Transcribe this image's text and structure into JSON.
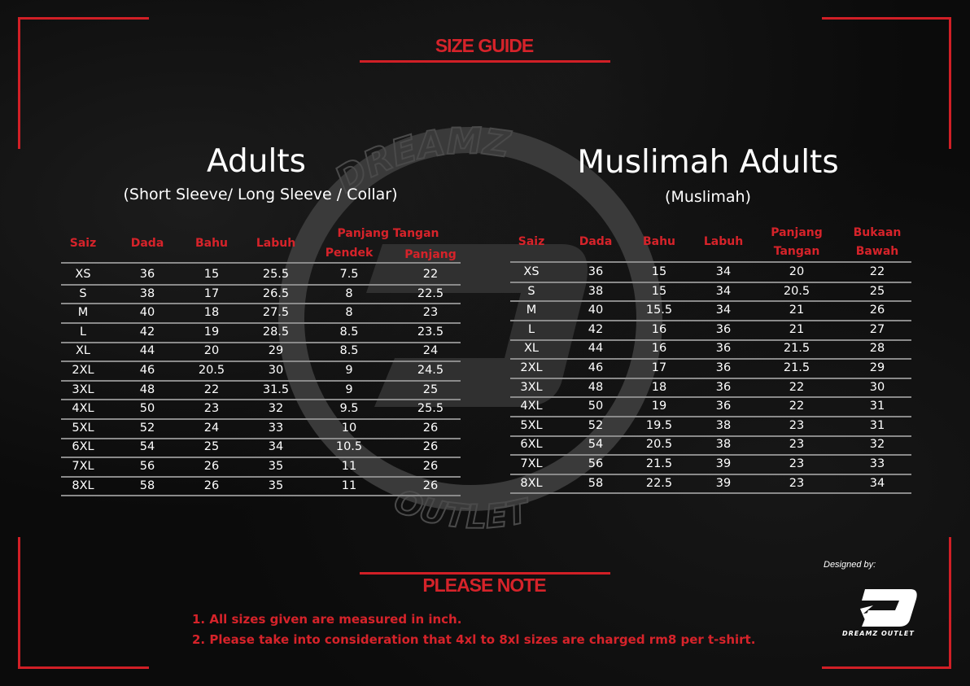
{
  "header": {
    "title": "SIZE GUIDE"
  },
  "watermark": {
    "top_text": "DREAMZ",
    "bottom_text": "OUTLET"
  },
  "adults": {
    "title": "Adults",
    "subtitle": "(Short Sleeve/ Long Sleeve / Collar)",
    "group_header": "Panjang Tangan",
    "columns": [
      "Saiz",
      "Dada",
      "Bahu",
      "Labuh",
      "Pendek",
      "Panjang"
    ],
    "rows": [
      [
        "XS",
        "36",
        "15",
        "25.5",
        "7.5",
        "22"
      ],
      [
        "S",
        "38",
        "17",
        "26.5",
        "8",
        "22.5"
      ],
      [
        "M",
        "40",
        "18",
        "27.5",
        "8",
        "23"
      ],
      [
        "L",
        "42",
        "19",
        "28.5",
        "8.5",
        "23.5"
      ],
      [
        "XL",
        "44",
        "20",
        "29",
        "8.5",
        "24"
      ],
      [
        "2XL",
        "46",
        "20.5",
        "30",
        "9",
        "24.5"
      ],
      [
        "3XL",
        "48",
        "22",
        "31.5",
        "9",
        "25"
      ],
      [
        "4XL",
        "50",
        "23",
        "32",
        "9.5",
        "25.5"
      ],
      [
        "5XL",
        "52",
        "24",
        "33",
        "10",
        "26"
      ],
      [
        "6XL",
        "54",
        "25",
        "34",
        "10.5",
        "26"
      ],
      [
        "7XL",
        "56",
        "26",
        "35",
        "11",
        "26"
      ],
      [
        "8XL",
        "58",
        "26",
        "35",
        "11",
        "26"
      ]
    ]
  },
  "muslimah": {
    "title": "Muslimah Adults",
    "subtitle": "(Muslimah)",
    "columns": [
      "Saiz",
      "Dada",
      "Bahu",
      "Labuh",
      "Panjang\nTangan",
      "Bukaan\nBawah"
    ],
    "rows": [
      [
        "XS",
        "36",
        "15",
        "34",
        "20",
        "22"
      ],
      [
        "S",
        "38",
        "15",
        "34",
        "20.5",
        "25"
      ],
      [
        "M",
        "40",
        "15.5",
        "34",
        "21",
        "26"
      ],
      [
        "L",
        "42",
        "16",
        "36",
        "21",
        "27"
      ],
      [
        "XL",
        "44",
        "16",
        "36",
        "21.5",
        "28"
      ],
      [
        "2XL",
        "46",
        "17",
        "36",
        "21.5",
        "29"
      ],
      [
        "3XL",
        "48",
        "18",
        "36",
        "22",
        "30"
      ],
      [
        "4XL",
        "50",
        "19",
        "36",
        "22",
        "31"
      ],
      [
        "5XL",
        "52",
        "19.5",
        "38",
        "23",
        "31"
      ],
      [
        "6XL",
        "54",
        "20.5",
        "38",
        "23",
        "32"
      ],
      [
        "7XL",
        "56",
        "21.5",
        "39",
        "23",
        "33"
      ],
      [
        "8XL",
        "58",
        "22.5",
        "39",
        "23",
        "34"
      ]
    ]
  },
  "notes": {
    "title": "PLEASE NOTE",
    "items": [
      "1. All sizes given are measured in inch.",
      "2. Please take into consideration that 4xl to 8xl sizes are charged rm8 per t-shirt."
    ]
  },
  "credit": {
    "label": "Designed by:",
    "logo_text": "DREAMZ OUTLET"
  },
  "colors": {
    "accent": "#d11f26",
    "background": "#0b0b0b"
  }
}
